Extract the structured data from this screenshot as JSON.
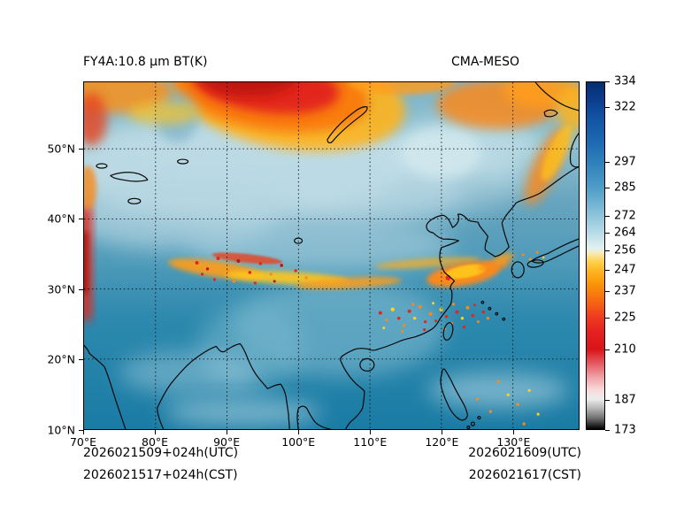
{
  "titles": {
    "left": "FY4A:10.8 μm BT(K)",
    "right": "CMA-MESO"
  },
  "x_axis": {
    "unit": "°E",
    "min": 70,
    "max": 139.2,
    "ticks": [
      {
        "value": 70,
        "label": "70°E"
      },
      {
        "value": 80,
        "label": "80°E"
      },
      {
        "value": 90,
        "label": "90°E"
      },
      {
        "value": 100,
        "label": "100°E"
      },
      {
        "value": 110,
        "label": "110°E"
      },
      {
        "value": 120,
        "label": "120°E"
      },
      {
        "value": 130,
        "label": "130°E"
      }
    ]
  },
  "y_axis": {
    "unit": "°N",
    "min": 10,
    "max": 59.5,
    "ticks": [
      {
        "value": 50,
        "label": "50°N"
      },
      {
        "value": 40,
        "label": "40°N"
      },
      {
        "value": 30,
        "label": "30°N"
      },
      {
        "value": 20,
        "label": "20°N"
      },
      {
        "value": 10,
        "label": "10°N"
      }
    ]
  },
  "colorbar": {
    "unit": "K",
    "min": 173,
    "max": 334,
    "ticks": [
      334,
      322,
      297,
      285,
      272,
      264,
      256,
      247,
      237,
      225,
      210,
      187,
      173
    ],
    "stops": [
      {
        "t": 334,
        "c": "#062e6f"
      },
      {
        "t": 326,
        "c": "#0b3d8d"
      },
      {
        "t": 318,
        "c": "#1252a3"
      },
      {
        "t": 308,
        "c": "#1a66b0"
      },
      {
        "t": 297,
        "c": "#2e80bb"
      },
      {
        "t": 285,
        "c": "#4f9dc7"
      },
      {
        "t": 278,
        "c": "#6fb2d2"
      },
      {
        "t": 272,
        "c": "#8fc5da"
      },
      {
        "t": 264,
        "c": "#b9dce8"
      },
      {
        "t": 257,
        "c": "#e2f0f1"
      },
      {
        "t": 255,
        "c": "#f6edbe"
      },
      {
        "t": 251,
        "c": "#ffd24f"
      },
      {
        "t": 247,
        "c": "#fdb927"
      },
      {
        "t": 242,
        "c": "#fb9d0d"
      },
      {
        "t": 237,
        "c": "#f8820a"
      },
      {
        "t": 231,
        "c": "#f55f14"
      },
      {
        "t": 225,
        "c": "#ef3a20"
      },
      {
        "t": 218,
        "c": "#e52020"
      },
      {
        "t": 210,
        "c": "#d81519"
      },
      {
        "t": 204,
        "c": "#e4555c"
      },
      {
        "t": 197,
        "c": "#f0a3a8"
      },
      {
        "t": 191,
        "c": "#f8dcdc"
      },
      {
        "t": 187,
        "c": "#ededed"
      },
      {
        "t": 183,
        "c": "#bbbbbb"
      },
      {
        "t": 178,
        "c": "#6e6e6e"
      },
      {
        "t": 173,
        "c": "#000000"
      }
    ]
  },
  "footer": {
    "left_line1": "2026021509+024h(UTC)",
    "left_line2": "2026021517+024h(CST)",
    "right_line1": "2026021609(UTC)",
    "right_line2": "2026021617(CST)"
  },
  "chart_data": {
    "type": "heatmap",
    "title": "FY4A:10.8 μm BT(K)",
    "model": "CMA-MESO",
    "x_range_deg_east": [
      70,
      139.2
    ],
    "y_range_deg_north": [
      10,
      59.5
    ],
    "colorbar_range_K": [
      173,
      334
    ],
    "colorbar_ticks_K": [
      334,
      322,
      297,
      285,
      272,
      264,
      256,
      247,
      237,
      225,
      210,
      187,
      173
    ]
  }
}
